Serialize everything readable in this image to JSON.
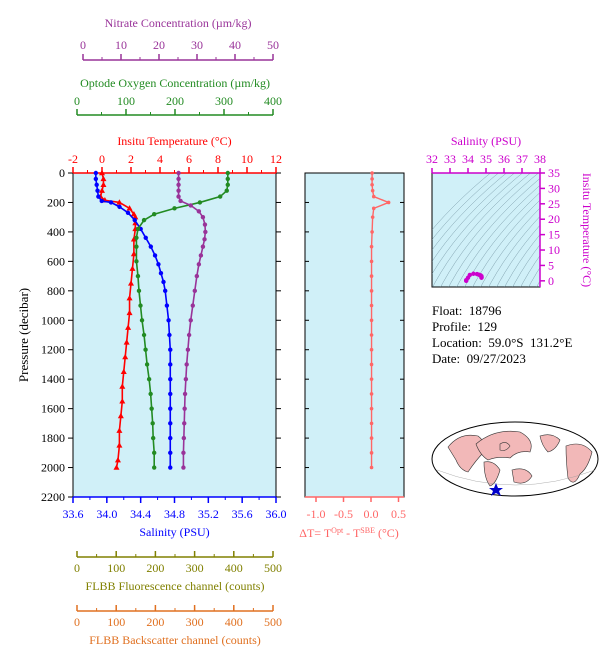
{
  "colors": {
    "nitrate": "#993399",
    "oxygen": "#228B22",
    "temperature": "#ff0000",
    "salinity": "#0000ff",
    "fluorescence": "#808000",
    "backscatter": "#e07020",
    "delta_t": "#ff6666",
    "ts_axis": "#cc00cc",
    "plot_bg": "#d0f0f8"
  },
  "info": {
    "float": "Float:  18796",
    "profile": "Profile:  129",
    "location": "Location:  59.0°S  131.2°E",
    "date": "Date:  09/27/2023"
  },
  "chart_data": [
    {
      "type": "line",
      "name": "main-profile",
      "ylabel": "Pressure (decibar)",
      "y_ticks": [
        "0",
        "200",
        "400",
        "600",
        "800",
        "1000",
        "1200",
        "1400",
        "1600",
        "1800",
        "2000",
        "2200"
      ],
      "ylim": [
        0,
        2200
      ],
      "y_inverted": true,
      "axes": {
        "nitrate": {
          "label": "Nitrate Concentration (µm/kg)",
          "ticks": [
            "0",
            "10",
            "20",
            "30",
            "40",
            "50"
          ],
          "range": [
            0,
            50
          ]
        },
        "oxygen": {
          "label": "Optode Oxygen Concentration (µm/kg)",
          "ticks": [
            "0",
            "100",
            "200",
            "300",
            "400"
          ],
          "range": [
            0,
            400
          ]
        },
        "temperature": {
          "label": "Insitu Temperature (°C)",
          "ticks": [
            "-2",
            "0",
            "2",
            "4",
            "6",
            "8",
            "10",
            "12"
          ],
          "range": [
            -2,
            12
          ]
        },
        "salinity": {
          "label": "Salinity (PSU)",
          "ticks": [
            "33.6",
            "34.0",
            "34.4",
            "34.8",
            "35.2",
            "35.6",
            "36.0"
          ],
          "range": [
            33.6,
            36.0
          ]
        },
        "fluorescence": {
          "label": "FLBB Fluorescence channel (counts)",
          "ticks": [
            "0",
            "100",
            "200",
            "300",
            "400",
            "500"
          ],
          "range": [
            0,
            500
          ]
        },
        "backscatter": {
          "label": "FLBB Backscatter channel (counts)",
          "ticks": [
            "0",
            "100",
            "200",
            "300",
            "400",
            "500"
          ],
          "range": [
            0,
            500
          ]
        }
      },
      "series": [
        {
          "key": "temperature",
          "marker": "triangle",
          "points": [
            [
              0.0,
              0
            ],
            [
              0.1,
              40
            ],
            [
              0.1,
              80
            ],
            [
              0.0,
              120
            ],
            [
              -0.1,
              160
            ],
            [
              0.2,
              185
            ],
            [
              1.2,
              200
            ],
            [
              1.9,
              240
            ],
            [
              2.2,
              280
            ],
            [
              2.3,
              300
            ],
            [
              2.3,
              340
            ],
            [
              2.3,
              380
            ],
            [
              2.2,
              450
            ],
            [
              2.2,
              550
            ],
            [
              2.1,
              650
            ],
            [
              2.0,
              750
            ],
            [
              1.9,
              850
            ],
            [
              1.9,
              950
            ],
            [
              1.8,
              1050
            ],
            [
              1.7,
              1150
            ],
            [
              1.6,
              1250
            ],
            [
              1.5,
              1350
            ],
            [
              1.4,
              1450
            ],
            [
              1.4,
              1550
            ],
            [
              1.3,
              1650
            ],
            [
              1.2,
              1750
            ],
            [
              1.2,
              1850
            ],
            [
              1.1,
              1950
            ],
            [
              1.0,
              2000
            ]
          ]
        },
        {
          "key": "salinity",
          "marker": "circle",
          "points": [
            [
              33.87,
              0
            ],
            [
              33.87,
              40
            ],
            [
              33.88,
              80
            ],
            [
              33.89,
              120
            ],
            [
              33.9,
              160
            ],
            [
              33.94,
              190
            ],
            [
              34.05,
              200
            ],
            [
              34.15,
              230
            ],
            [
              34.25,
              270
            ],
            [
              34.33,
              320
            ],
            [
              34.4,
              380
            ],
            [
              34.46,
              440
            ],
            [
              34.52,
              500
            ],
            [
              34.57,
              560
            ],
            [
              34.61,
              620
            ],
            [
              34.64,
              680
            ],
            [
              34.67,
              740
            ],
            [
              34.69,
              800
            ],
            [
              34.71,
              900
            ],
            [
              34.73,
              1000
            ],
            [
              34.74,
              1100
            ],
            [
              34.75,
              1200
            ],
            [
              34.75,
              1300
            ],
            [
              34.75,
              1400
            ],
            [
              34.75,
              1500
            ],
            [
              34.75,
              1600
            ],
            [
              34.75,
              1700
            ],
            [
              34.75,
              1800
            ],
            [
              34.75,
              1900
            ],
            [
              34.75,
              2000
            ]
          ]
        },
        {
          "key": "oxygen",
          "marker": "circle",
          "points": [
            [
              305,
              0
            ],
            [
              305,
              40
            ],
            [
              305,
              80
            ],
            [
              303,
              120
            ],
            [
              290,
              160
            ],
            [
              250,
              200
            ],
            [
              200,
              240
            ],
            [
              160,
              280
            ],
            [
              140,
              320
            ],
            [
              128,
              380
            ],
            [
              125,
              440
            ],
            [
              125,
              500
            ],
            [
              125,
              600
            ],
            [
              128,
              700
            ],
            [
              130,
              800
            ],
            [
              133,
              900
            ],
            [
              136,
              1000
            ],
            [
              140,
              1100
            ],
            [
              143,
              1200
            ],
            [
              146,
              1300
            ],
            [
              150,
              1400
            ],
            [
              153,
              1500
            ],
            [
              155,
              1600
            ],
            [
              157,
              1700
            ],
            [
              158,
              1800
            ],
            [
              160,
              1900
            ],
            [
              160,
              2000
            ]
          ]
        },
        {
          "key": "nitrate",
          "marker": "circle",
          "points": [
            [
              26.0,
              0
            ],
            [
              26.0,
              40
            ],
            [
              26.0,
              80
            ],
            [
              26.0,
              120
            ],
            [
              26.0,
              160
            ],
            [
              26.5,
              190
            ],
            [
              29.0,
              220
            ],
            [
              31.0,
              260
            ],
            [
              32.0,
              300
            ],
            [
              32.5,
              350
            ],
            [
              32.6,
              400
            ],
            [
              32.4,
              450
            ],
            [
              32.0,
              500
            ],
            [
              31.5,
              560
            ],
            [
              31.0,
              620
            ],
            [
              30.5,
              700
            ],
            [
              30.0,
              800
            ],
            [
              29.5,
              900
            ],
            [
              29.0,
              1000
            ],
            [
              28.6,
              1100
            ],
            [
              28.3,
              1200
            ],
            [
              28.0,
              1300
            ],
            [
              27.8,
              1400
            ],
            [
              27.6,
              1500
            ],
            [
              27.5,
              1600
            ],
            [
              27.4,
              1700
            ],
            [
              27.3,
              1800
            ],
            [
              27.2,
              1900
            ],
            [
              27.2,
              2000
            ]
          ]
        }
      ]
    },
    {
      "type": "line",
      "name": "delta-t",
      "xlabel_main": "ΔT= T",
      "xlabel_sup1": "Opt",
      "xlabel_mid": " - T",
      "xlabel_sup2": "SBE",
      "xlabel_unit": " (°C)",
      "x_ticks": [
        "-1.0",
        "-0.5",
        "0.0",
        "0.5"
      ],
      "xlim": [
        -1.2,
        0.6
      ],
      "ylim": [
        0,
        2200
      ],
      "points": [
        [
          0.02,
          0
        ],
        [
          0.02,
          40
        ],
        [
          0.02,
          80
        ],
        [
          0.03,
          120
        ],
        [
          0.05,
          160
        ],
        [
          0.32,
          200
        ],
        [
          0.05,
          240
        ],
        [
          0.03,
          300
        ],
        [
          0.02,
          400
        ],
        [
          0.01,
          500
        ],
        [
          0.01,
          600
        ],
        [
          0.01,
          700
        ],
        [
          0.01,
          800
        ],
        [
          0.01,
          900
        ],
        [
          0.01,
          1000
        ],
        [
          0.01,
          1100
        ],
        [
          0.01,
          1200
        ],
        [
          0.01,
          1300
        ],
        [
          0.01,
          1400
        ],
        [
          0.01,
          1500
        ],
        [
          0.01,
          1600
        ],
        [
          0.01,
          1700
        ],
        [
          0.01,
          1800
        ],
        [
          0.01,
          1900
        ],
        [
          0.01,
          2000
        ]
      ]
    },
    {
      "type": "scatter",
      "name": "ts-diagram",
      "xlabel": "Salinity (PSU)",
      "ylabel": "Insitu Temperature (°C)",
      "x_ticks": [
        "32",
        "33",
        "34",
        "35",
        "36",
        "37",
        "38"
      ],
      "y_ticks": [
        "0",
        "5",
        "10",
        "15",
        "20",
        "25",
        "30",
        "35"
      ],
      "xlim": [
        32,
        38
      ],
      "ylim": [
        -2,
        35
      ],
      "points": [
        [
          33.9,
          0.0
        ],
        [
          33.9,
          0.2
        ],
        [
          34.0,
          1.0
        ],
        [
          34.1,
          1.9
        ],
        [
          34.3,
          2.3
        ],
        [
          34.5,
          2.2
        ],
        [
          34.6,
          2.0
        ],
        [
          34.7,
          1.8
        ],
        [
          34.75,
          1.5
        ],
        [
          34.75,
          1.2
        ],
        [
          34.75,
          1.0
        ]
      ]
    }
  ]
}
